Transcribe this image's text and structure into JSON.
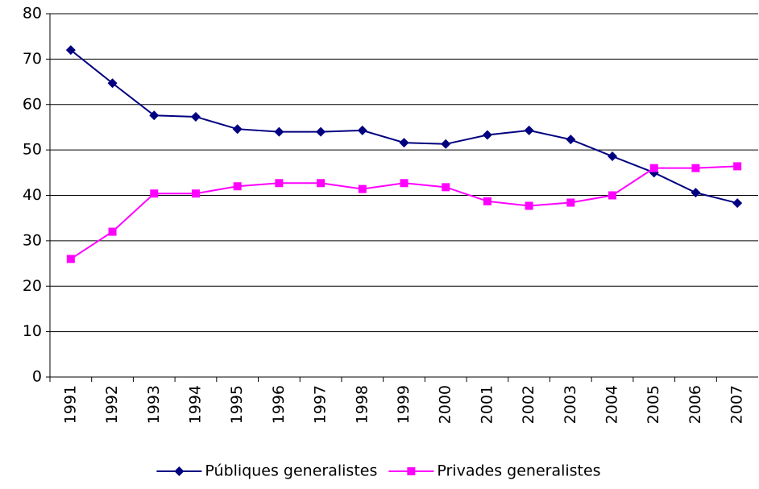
{
  "chart_data": {
    "type": "line",
    "categories": [
      "1991",
      "1992",
      "1993",
      "1994",
      "1995",
      "1996",
      "1997",
      "1998",
      "1999",
      "2000",
      "2001",
      "2002",
      "2003",
      "2004",
      "2005",
      "2006",
      "2007"
    ],
    "series": [
      {
        "name": "Públiques generalistes",
        "color": "#000080",
        "marker": "diamond",
        "values": [
          72,
          64.7,
          57.6,
          57.3,
          54.6,
          54,
          54,
          54.3,
          51.6,
          51.3,
          53.3,
          54.3,
          52.3,
          48.6,
          45,
          40.6,
          38.3
        ]
      },
      {
        "name": "Privades generalistes",
        "color": "#ff00ff",
        "marker": "square",
        "values": [
          26,
          32,
          40.4,
          40.4,
          42,
          42.7,
          42.7,
          41.4,
          42.7,
          41.8,
          38.7,
          37.7,
          38.4,
          40,
          46,
          46,
          46.4
        ]
      }
    ],
    "ylim": [
      0,
      80
    ],
    "yticks": [
      0,
      10,
      20,
      30,
      40,
      50,
      60,
      70,
      80
    ],
    "grid": true,
    "legend": "bottom"
  }
}
